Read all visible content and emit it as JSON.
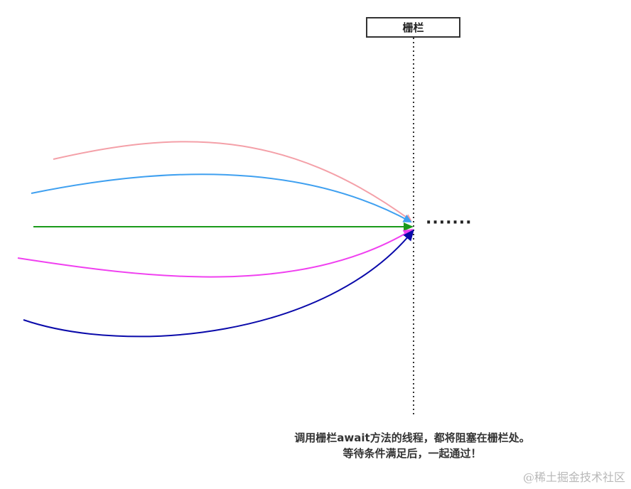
{
  "barrier": {
    "label": "栅栏"
  },
  "ellipsis": "·······",
  "caption": {
    "line1": "调用栅栏await方法的线程，都将阻塞在栅栏处。",
    "line2": "等待条件满足后，一起通过！"
  },
  "watermark": "@稀土掘金技术社区",
  "colors": {
    "thread_pink": "#f4a0a8",
    "thread_blue": "#3fa0f0",
    "thread_green": "#1a9a1a",
    "thread_magenta": "#f040f0",
    "thread_navy": "#0a0aaa",
    "barrier_line": "#333333"
  }
}
